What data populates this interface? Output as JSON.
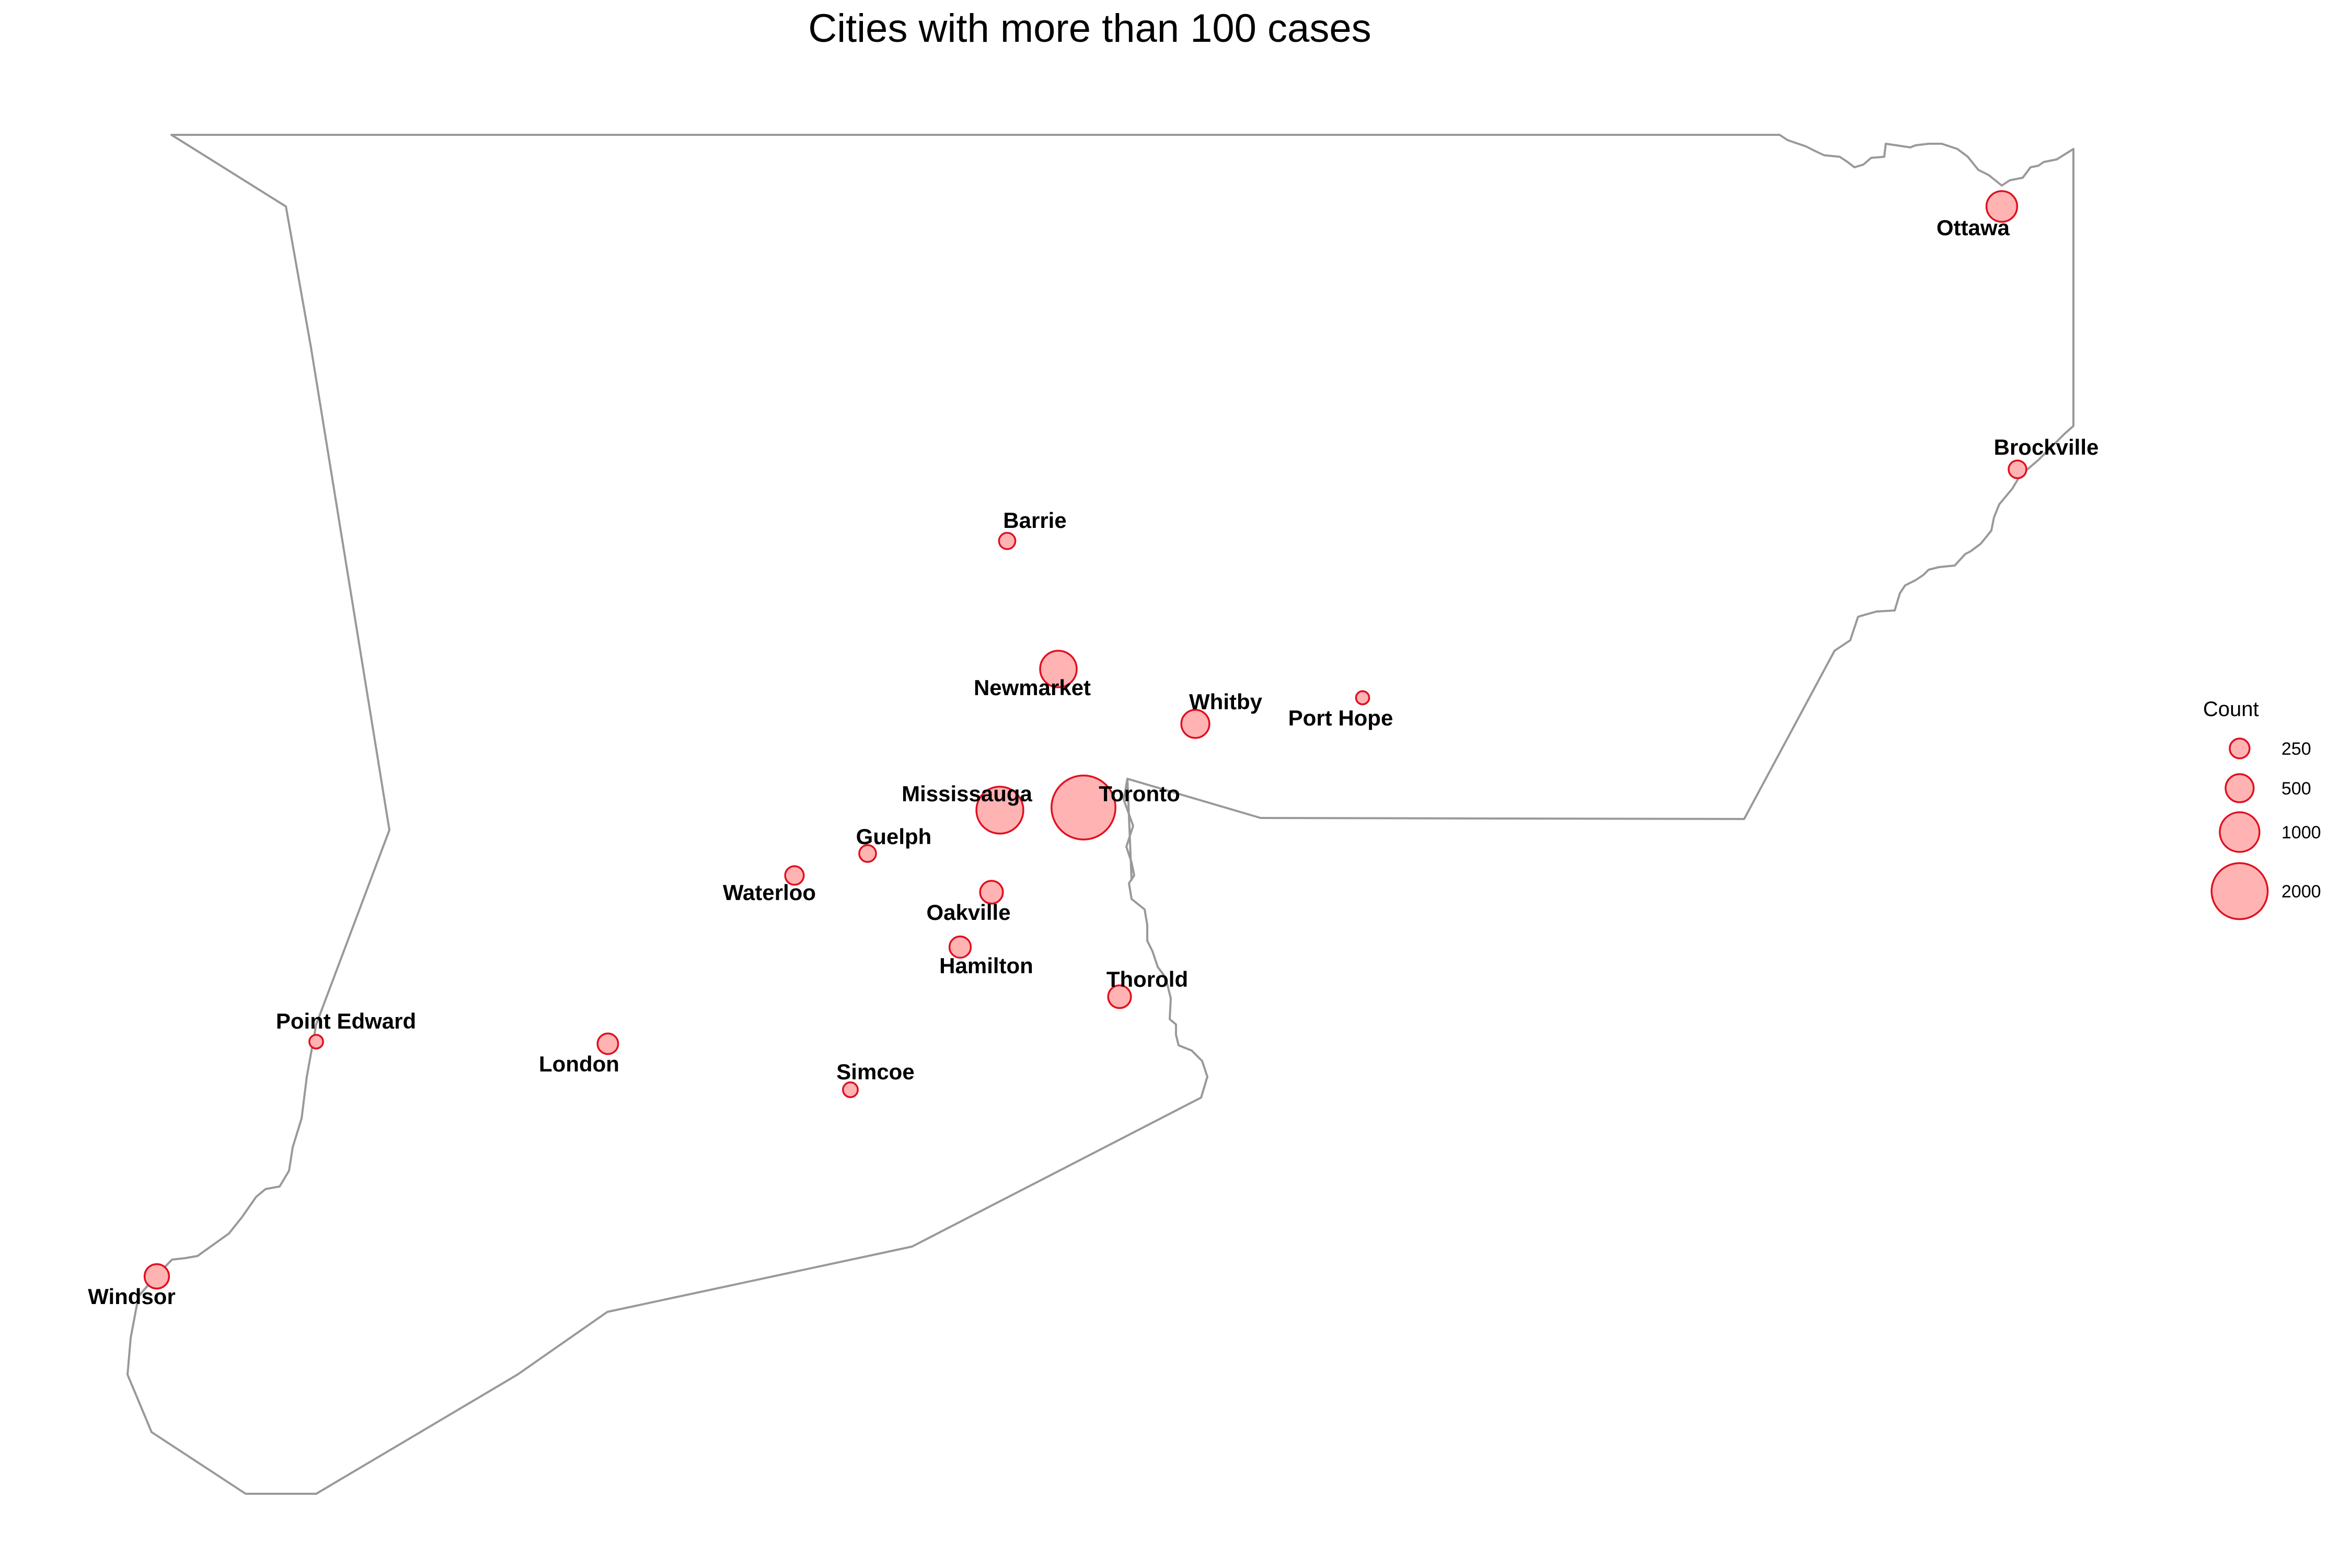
{
  "title": "Cities with more than 100 cases",
  "colors": {
    "bubble_fill": "#ffb3b3",
    "bubble_stroke": "#e01020",
    "boundary": "#999999"
  },
  "legend": {
    "title": "Count",
    "items": [
      {
        "value": 250,
        "label": "250"
      },
      {
        "value": 500,
        "label": "500"
      },
      {
        "value": 1000,
        "label": "1000"
      },
      {
        "value": 2000,
        "label": "2000"
      }
    ]
  },
  "chart_data": {
    "type": "map-bubble",
    "title": "Cities with more than 100 cases",
    "size_legend_title": "Count",
    "points": [
      {
        "name": "Ottawa",
        "count": 600
      },
      {
        "name": "Brockville",
        "count": 200
      },
      {
        "name": "Barrie",
        "count": 170
      },
      {
        "name": "Newmarket",
        "count": 850
      },
      {
        "name": "Whitby",
        "count": 500
      },
      {
        "name": "Port Hope",
        "count": 110
      },
      {
        "name": "Mississauga",
        "count": 1400
      },
      {
        "name": "Toronto",
        "count": 2600
      },
      {
        "name": "Guelph",
        "count": 180
      },
      {
        "name": "Waterloo",
        "count": 220
      },
      {
        "name": "Oakville",
        "count": 330
      },
      {
        "name": "Hamilton",
        "count": 290
      },
      {
        "name": "Thorold",
        "count": 330
      },
      {
        "name": "Point Edward",
        "count": 120
      },
      {
        "name": "London",
        "count": 270
      },
      {
        "name": "Simcoe",
        "count": 140
      },
      {
        "name": "Windsor",
        "count": 380
      }
    ]
  }
}
